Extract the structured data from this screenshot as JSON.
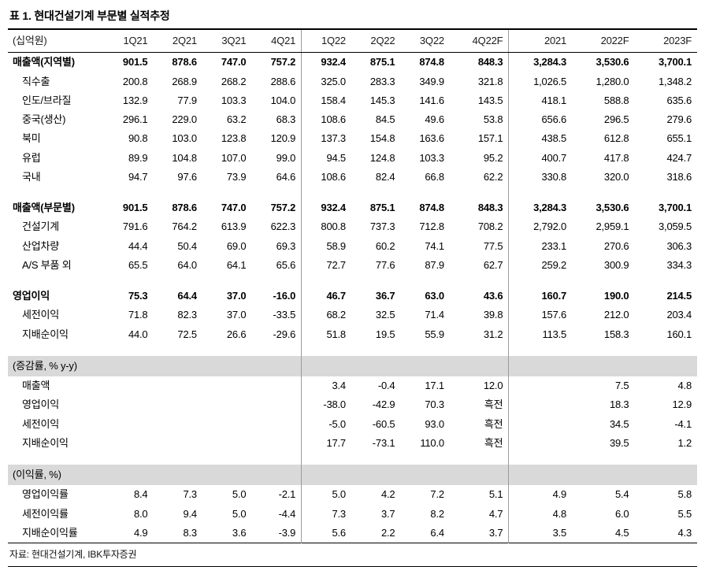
{
  "title": "표 1. 현대건설기계 부문별 실적추정",
  "source": "자료: 현대건설기계, IBK투자증권",
  "colors": {
    "band_bg": "#d9d9d9",
    "separator_line": "#9b9b9b",
    "rule": "#000000"
  },
  "table": {
    "unit_label": "(십억원)",
    "columns": [
      "1Q21",
      "2Q21",
      "3Q21",
      "4Q21",
      "1Q22",
      "2Q22",
      "3Q22",
      "4Q22F",
      "2021",
      "2022F",
      "2023F"
    ],
    "separator_before_value_index": [
      4,
      8
    ],
    "rows": [
      {
        "label": "매출액(지역별)",
        "style": "bold",
        "values": [
          "901.5",
          "878.6",
          "747.0",
          "757.2",
          "932.4",
          "875.1",
          "874.8",
          "848.3",
          "3,284.3",
          "3,530.6",
          "3,700.1"
        ]
      },
      {
        "label": "직수출",
        "style": "sub",
        "values": [
          "200.8",
          "268.9",
          "268.2",
          "288.6",
          "325.0",
          "283.3",
          "349.9",
          "321.8",
          "1,026.5",
          "1,280.0",
          "1,348.2"
        ]
      },
      {
        "label": "인도/브라질",
        "style": "sub",
        "values": [
          "132.9",
          "77.9",
          "103.3",
          "104.0",
          "158.4",
          "145.3",
          "141.6",
          "143.5",
          "418.1",
          "588.8",
          "635.6"
        ]
      },
      {
        "label": "중국(생산)",
        "style": "sub",
        "values": [
          "296.1",
          "229.0",
          "63.2",
          "68.3",
          "108.6",
          "84.5",
          "49.6",
          "53.8",
          "656.6",
          "296.5",
          "279.6"
        ]
      },
      {
        "label": "북미",
        "style": "sub",
        "values": [
          "90.8",
          "103.0",
          "123.8",
          "120.9",
          "137.3",
          "154.8",
          "163.6",
          "157.1",
          "438.5",
          "612.8",
          "655.1"
        ]
      },
      {
        "label": "유럽",
        "style": "sub",
        "values": [
          "89.9",
          "104.8",
          "107.0",
          "99.0",
          "94.5",
          "124.8",
          "103.3",
          "95.2",
          "400.7",
          "417.8",
          "424.7"
        ]
      },
      {
        "label": "국내",
        "style": "sub",
        "values": [
          "94.7",
          "97.6",
          "73.9",
          "64.6",
          "108.6",
          "82.4",
          "66.8",
          "62.2",
          "330.8",
          "320.0",
          "318.6"
        ]
      },
      {
        "style": "spacer"
      },
      {
        "label": "매출액(부문별)",
        "style": "bold",
        "values": [
          "901.5",
          "878.6",
          "747.0",
          "757.2",
          "932.4",
          "875.1",
          "874.8",
          "848.3",
          "3,284.3",
          "3,530.6",
          "3,700.1"
        ]
      },
      {
        "label": "건설기계",
        "style": "sub",
        "values": [
          "791.6",
          "764.2",
          "613.9",
          "622.3",
          "800.8",
          "737.3",
          "712.8",
          "708.2",
          "2,792.0",
          "2,959.1",
          "3,059.5"
        ]
      },
      {
        "label": "산업차량",
        "style": "sub",
        "values": [
          "44.4",
          "50.4",
          "69.0",
          "69.3",
          "58.9",
          "60.2",
          "74.1",
          "77.5",
          "233.1",
          "270.6",
          "306.3"
        ]
      },
      {
        "label": "A/S 부품 외",
        "style": "sub",
        "values": [
          "65.5",
          "64.0",
          "64.1",
          "65.6",
          "72.7",
          "77.6",
          "87.9",
          "62.7",
          "259.2",
          "300.9",
          "334.3"
        ]
      },
      {
        "style": "spacer"
      },
      {
        "label": "영업이익",
        "style": "bold",
        "values": [
          "75.3",
          "64.4",
          "37.0",
          "-16.0",
          "46.7",
          "36.7",
          "63.0",
          "43.6",
          "160.7",
          "190.0",
          "214.5"
        ]
      },
      {
        "label": "세전이익",
        "style": "sub",
        "values": [
          "71.8",
          "82.3",
          "37.0",
          "-33.5",
          "68.2",
          "32.5",
          "71.4",
          "39.8",
          "157.6",
          "212.0",
          "203.4"
        ]
      },
      {
        "label": "지배순이익",
        "style": "sub",
        "values": [
          "44.0",
          "72.5",
          "26.6",
          "-29.6",
          "51.8",
          "19.5",
          "55.9",
          "31.2",
          "113.5",
          "158.3",
          "160.1"
        ]
      },
      {
        "style": "spacer"
      },
      {
        "label": "(증감률, % y-y)",
        "style": "section",
        "values": [
          "",
          "",
          "",
          "",
          "",
          "",
          "",
          "",
          "",
          "",
          ""
        ]
      },
      {
        "label": "매출액",
        "style": "sub",
        "values": [
          "",
          "",
          "",
          "",
          "3.4",
          "-0.4",
          "17.1",
          "12.0",
          "",
          "7.5",
          "4.8"
        ]
      },
      {
        "label": "영업이익",
        "style": "sub",
        "values": [
          "",
          "",
          "",
          "",
          "-38.0",
          "-42.9",
          "70.3",
          "흑전",
          "",
          "18.3",
          "12.9"
        ]
      },
      {
        "label": "세전이익",
        "style": "sub",
        "values": [
          "",
          "",
          "",
          "",
          "-5.0",
          "-60.5",
          "93.0",
          "흑전",
          "",
          "34.5",
          "-4.1"
        ]
      },
      {
        "label": "지배순이익",
        "style": "sub",
        "values": [
          "",
          "",
          "",
          "",
          "17.7",
          "-73.1",
          "110.0",
          "흑전",
          "",
          "39.5",
          "1.2"
        ]
      },
      {
        "style": "spacer"
      },
      {
        "label": "(이익률, %)",
        "style": "section",
        "values": [
          "",
          "",
          "",
          "",
          "",
          "",
          "",
          "",
          "",
          "",
          ""
        ]
      },
      {
        "label": "영업이익률",
        "style": "sub",
        "values": [
          "8.4",
          "7.3",
          "5.0",
          "-2.1",
          "5.0",
          "4.2",
          "7.2",
          "5.1",
          "4.9",
          "5.4",
          "5.8"
        ]
      },
      {
        "label": "세전이익률",
        "style": "sub",
        "values": [
          "8.0",
          "9.4",
          "5.0",
          "-4.4",
          "7.3",
          "3.7",
          "8.2",
          "4.7",
          "4.8",
          "6.0",
          "5.5"
        ]
      },
      {
        "label": "지배순이익률",
        "style": "sub",
        "values": [
          "4.9",
          "8.3",
          "3.6",
          "-3.9",
          "5.6",
          "2.2",
          "6.4",
          "3.7",
          "3.5",
          "4.5",
          "4.3"
        ]
      }
    ]
  }
}
